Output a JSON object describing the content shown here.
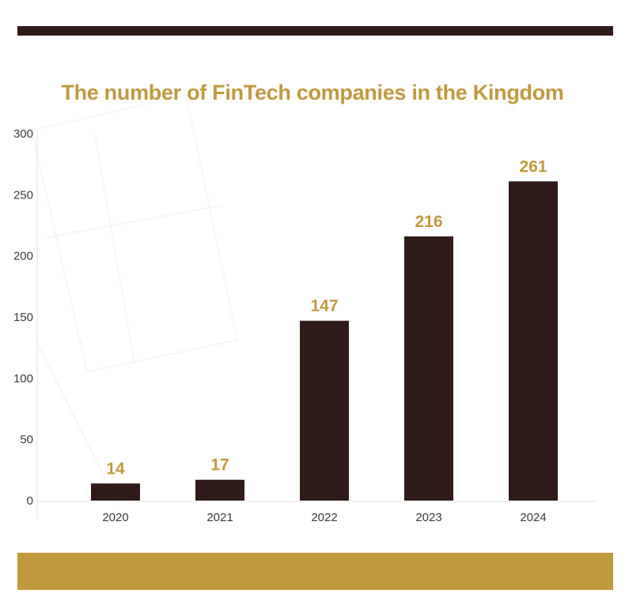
{
  "colors": {
    "bar": "#301a1a",
    "accent": "#c0993f",
    "axis": "#e2e2e2",
    "top_band": "#301a1a",
    "bottom_band": "#bf993c"
  },
  "chart_data": {
    "type": "bar",
    "title": "The number of FinTech companies in the Kingdom",
    "categories": [
      "2020",
      "2021",
      "2022",
      "2023",
      "2024"
    ],
    "values": [
      14,
      17,
      147,
      216,
      261
    ],
    "data_labels": [
      "14",
      "17",
      "147",
      "216",
      "261"
    ],
    "yticks": [
      "0",
      "50",
      "100",
      "150",
      "200",
      "250",
      "300"
    ],
    "ylim": [
      0,
      300
    ],
    "xlabel": "",
    "ylabel": "",
    "grid": false,
    "legend": "none"
  }
}
